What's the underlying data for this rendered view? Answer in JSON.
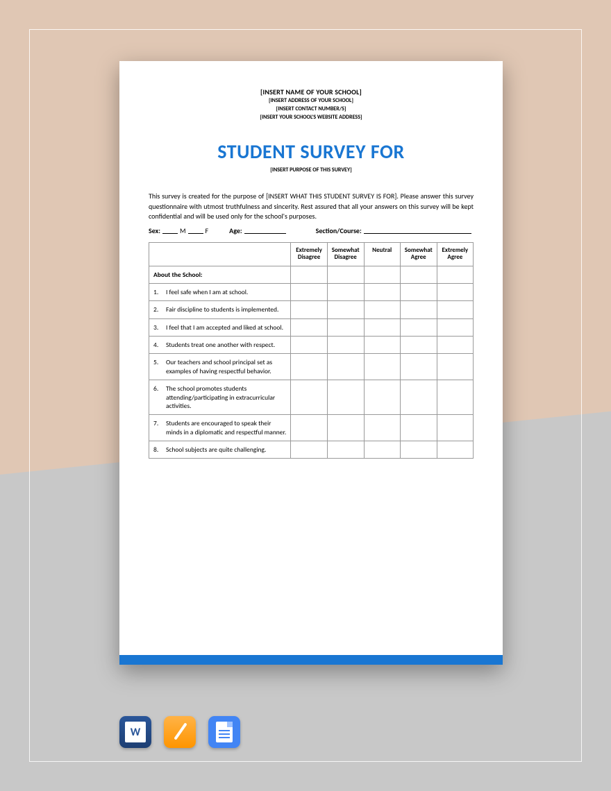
{
  "colors": {
    "title": "#1976d2",
    "footer_bar": "#1976d2",
    "bg_upper": "#e0c7b4",
    "bg_lower": "#c8c8c8",
    "page_bg": "#ffffff",
    "table_border": "#999999"
  },
  "header": {
    "school_name": "[INSERT NAME OF YOUR SCHOOL]",
    "address": "[INSERT ADDRESS OF YOUR SCHOOL]",
    "contact": "[INSERT CONTACT NUMBER/S]",
    "website": "[INSERT YOUR SCHOOL'S WEBSITE ADDRESS]"
  },
  "title": "STUDENT SURVEY FOR",
  "subtitle": "[INSERT PURPOSE OF THIS SURVEY]",
  "intro": "This survey is created for the purpose of [INSERT WHAT THIS STUDENT SURVEY IS FOR]. Please answer this survey questionnaire with utmost truthfulness and sincerity. Rest assured that all your answers on this survey will be kept confidential and will be used only for the school's purposes.",
  "demographics": {
    "sex_label": "Sex:",
    "m": "M",
    "f": "F",
    "age_label": "Age:",
    "section_label": "Section/Course:"
  },
  "table": {
    "columns": [
      "Extremely Disagree",
      "Somewhat Disagree",
      "Neutral",
      "Somewhat Agree",
      "Extremely Agree"
    ],
    "section_header": "About the School:",
    "rows": [
      {
        "num": "1.",
        "text": "I feel safe when I am at school."
      },
      {
        "num": "2.",
        "text": "Fair discipline to students is implemented."
      },
      {
        "num": "3.",
        "text": "I feel that I am accepted and liked at school."
      },
      {
        "num": "4.",
        "text": "Students treat one another with respect."
      },
      {
        "num": "5.",
        "text": "Our teachers and school principal set as examples of having respectful behavior."
      },
      {
        "num": "6.",
        "text": "The school promotes students attending/participating in extracurricular activities."
      },
      {
        "num": "7.",
        "text": "Students are encouraged to speak their minds in a diplomatic and respectful manner."
      },
      {
        "num": "8.",
        "text": "School subjects are quite challenging."
      }
    ]
  },
  "icons": {
    "word": "W",
    "pages": "pages",
    "docs": "docs"
  }
}
